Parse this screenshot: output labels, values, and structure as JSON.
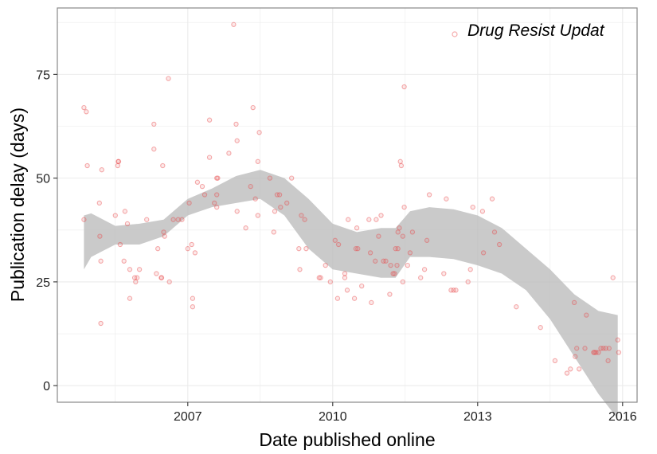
{
  "chart_data": {
    "type": "scatter",
    "xlabel": "Date published online",
    "ylabel": "Publication delay (days)",
    "xlim": [
      2004.3,
      2016.3
    ],
    "ylim": [
      -4,
      91
    ],
    "x_ticks": [
      2007,
      2010,
      2013,
      2016
    ],
    "x_tick_labels": [
      "2007",
      "2010",
      "2013",
      "2016"
    ],
    "y_ticks": [
      0,
      25,
      50,
      75
    ],
    "y_tick_labels": [
      "0",
      "25",
      "50",
      "75"
    ],
    "grid": true,
    "legend_position": "top-right",
    "colors": {
      "points": "#e8474a",
      "ribbon": "#bdbdbd",
      "grid": "#ebebeb",
      "border": "#888888"
    },
    "series": [
      {
        "name": "Drug Resist Updat",
        "points": [
          [
            2004.85,
            67
          ],
          [
            2004.9,
            66
          ],
          [
            2004.85,
            40
          ],
          [
            2004.92,
            53
          ],
          [
            2005.17,
            44
          ],
          [
            2005.18,
            36
          ],
          [
            2005.2,
            30
          ],
          [
            2005.22,
            52
          ],
          [
            2005.2,
            15
          ],
          [
            2005.5,
            41
          ],
          [
            2005.55,
            53
          ],
          [
            2005.56,
            54
          ],
          [
            2005.57,
            54
          ],
          [
            2005.6,
            34
          ],
          [
            2005.7,
            42
          ],
          [
            2005.68,
            30
          ],
          [
            2005.75,
            39
          ],
          [
            2005.8,
            28
          ],
          [
            2005.8,
            21
          ],
          [
            2005.9,
            26
          ],
          [
            2005.92,
            25
          ],
          [
            2005.95,
            26
          ],
          [
            2006.0,
            28
          ],
          [
            2006.15,
            40
          ],
          [
            2006.3,
            57
          ],
          [
            2006.3,
            63
          ],
          [
            2006.35,
            27
          ],
          [
            2006.38,
            33
          ],
          [
            2006.45,
            26
          ],
          [
            2006.46,
            26
          ],
          [
            2006.48,
            53
          ],
          [
            2006.5,
            37
          ],
          [
            2006.52,
            36
          ],
          [
            2006.6,
            74
          ],
          [
            2006.62,
            25
          ],
          [
            2006.7,
            40
          ],
          [
            2006.8,
            40
          ],
          [
            2006.88,
            40
          ],
          [
            2007.0,
            33
          ],
          [
            2007.03,
            44
          ],
          [
            2007.08,
            34
          ],
          [
            2007.1,
            21
          ],
          [
            2007.1,
            19
          ],
          [
            2007.15,
            32
          ],
          [
            2007.2,
            49
          ],
          [
            2007.3,
            48
          ],
          [
            2007.35,
            46
          ],
          [
            2007.45,
            64
          ],
          [
            2007.45,
            55
          ],
          [
            2007.55,
            44
          ],
          [
            2007.6,
            43
          ],
          [
            2007.6,
            46
          ],
          [
            2007.6,
            50
          ],
          [
            2007.62,
            50
          ],
          [
            2007.85,
            56
          ],
          [
            2007.95,
            87
          ],
          [
            2008.0,
            63
          ],
          [
            2008.02,
            59
          ],
          [
            2008.02,
            42
          ],
          [
            2008.2,
            38
          ],
          [
            2008.3,
            48
          ],
          [
            2008.35,
            67
          ],
          [
            2008.4,
            45
          ],
          [
            2008.45,
            54
          ],
          [
            2008.48,
            61
          ],
          [
            2008.45,
            41
          ],
          [
            2008.7,
            50
          ],
          [
            2008.78,
            37
          ],
          [
            2008.8,
            42
          ],
          [
            2008.85,
            46
          ],
          [
            2008.9,
            46
          ],
          [
            2008.92,
            43
          ],
          [
            2009.05,
            44
          ],
          [
            2009.15,
            50
          ],
          [
            2009.3,
            33
          ],
          [
            2009.32,
            28
          ],
          [
            2009.35,
            41
          ],
          [
            2009.42,
            40
          ],
          [
            2009.45,
            33
          ],
          [
            2009.72,
            26
          ],
          [
            2009.75,
            26
          ],
          [
            2009.85,
            29
          ],
          [
            2009.95,
            25
          ],
          [
            2010.05,
            35
          ],
          [
            2010.1,
            21
          ],
          [
            2010.12,
            34
          ],
          [
            2010.25,
            27
          ],
          [
            2010.25,
            26
          ],
          [
            2010.3,
            23
          ],
          [
            2010.32,
            40
          ],
          [
            2010.45,
            21
          ],
          [
            2010.48,
            33
          ],
          [
            2010.5,
            38
          ],
          [
            2010.52,
            33
          ],
          [
            2010.6,
            24
          ],
          [
            2010.75,
            40
          ],
          [
            2010.78,
            32
          ],
          [
            2010.8,
            20
          ],
          [
            2010.88,
            30
          ],
          [
            2010.9,
            40
          ],
          [
            2010.95,
            36
          ],
          [
            2011.0,
            41
          ],
          [
            2011.05,
            30
          ],
          [
            2011.1,
            30
          ],
          [
            2011.18,
            22
          ],
          [
            2011.2,
            29
          ],
          [
            2011.25,
            27
          ],
          [
            2011.28,
            27
          ],
          [
            2011.3,
            33
          ],
          [
            2011.33,
            29
          ],
          [
            2011.35,
            37
          ],
          [
            2011.35,
            33
          ],
          [
            2011.38,
            38
          ],
          [
            2011.4,
            54
          ],
          [
            2011.42,
            53
          ],
          [
            2011.45,
            36
          ],
          [
            2011.45,
            25
          ],
          [
            2011.48,
            43
          ],
          [
            2011.48,
            72
          ],
          [
            2011.55,
            29
          ],
          [
            2011.6,
            32
          ],
          [
            2011.65,
            37
          ],
          [
            2011.82,
            26
          ],
          [
            2011.9,
            28
          ],
          [
            2012.0,
            46
          ],
          [
            2011.95,
            35
          ],
          [
            2012.3,
            27
          ],
          [
            2012.35,
            45
          ],
          [
            2012.45,
            23
          ],
          [
            2012.5,
            23
          ],
          [
            2012.55,
            23
          ],
          [
            2012.8,
            25
          ],
          [
            2012.85,
            28
          ],
          [
            2012.9,
            43
          ],
          [
            2013.1,
            42
          ],
          [
            2013.12,
            32
          ],
          [
            2013.3,
            45
          ],
          [
            2013.35,
            37
          ],
          [
            2013.45,
            34
          ],
          [
            2013.8,
            19
          ],
          [
            2014.3,
            14
          ],
          [
            2014.6,
            6
          ],
          [
            2014.85,
            3
          ],
          [
            2014.92,
            4
          ],
          [
            2015.0,
            20
          ],
          [
            2015.02,
            7
          ],
          [
            2015.05,
            9
          ],
          [
            2015.1,
            4
          ],
          [
            2015.22,
            9
          ],
          [
            2015.25,
            17
          ],
          [
            2015.4,
            8
          ],
          [
            2015.42,
            8
          ],
          [
            2015.45,
            8
          ],
          [
            2015.5,
            8
          ],
          [
            2015.55,
            9
          ],
          [
            2015.6,
            9
          ],
          [
            2015.65,
            9
          ],
          [
            2015.7,
            6
          ],
          [
            2015.72,
            9
          ],
          [
            2015.8,
            26
          ],
          [
            2015.9,
            11
          ],
          [
            2015.92,
            8
          ]
        ]
      }
    ],
    "smooth_band": {
      "x": [
        2004.85,
        2005.0,
        2005.5,
        2006.0,
        2006.5,
        2007.0,
        2007.5,
        2008.0,
        2008.5,
        2009.0,
        2009.5,
        2010.0,
        2010.5,
        2011.0,
        2011.3,
        2011.6,
        2012.0,
        2012.5,
        2013.0,
        2013.5,
        2014.0,
        2014.5,
        2015.0,
        2015.5,
        2015.9
      ],
      "lower": [
        28,
        31,
        34,
        34,
        36,
        41,
        43,
        44,
        45,
        41,
        33,
        28,
        27,
        26,
        26,
        31,
        31,
        30.5,
        29,
        27,
        23,
        16,
        7,
        -2,
        -8
      ],
      "upper": [
        41,
        41.5,
        38.5,
        39,
        40,
        45,
        47.5,
        50.5,
        52,
        50,
        45,
        39,
        37,
        38,
        38,
        42,
        43,
        42.5,
        41,
        38,
        33,
        28,
        22,
        18,
        17
      ]
    }
  }
}
